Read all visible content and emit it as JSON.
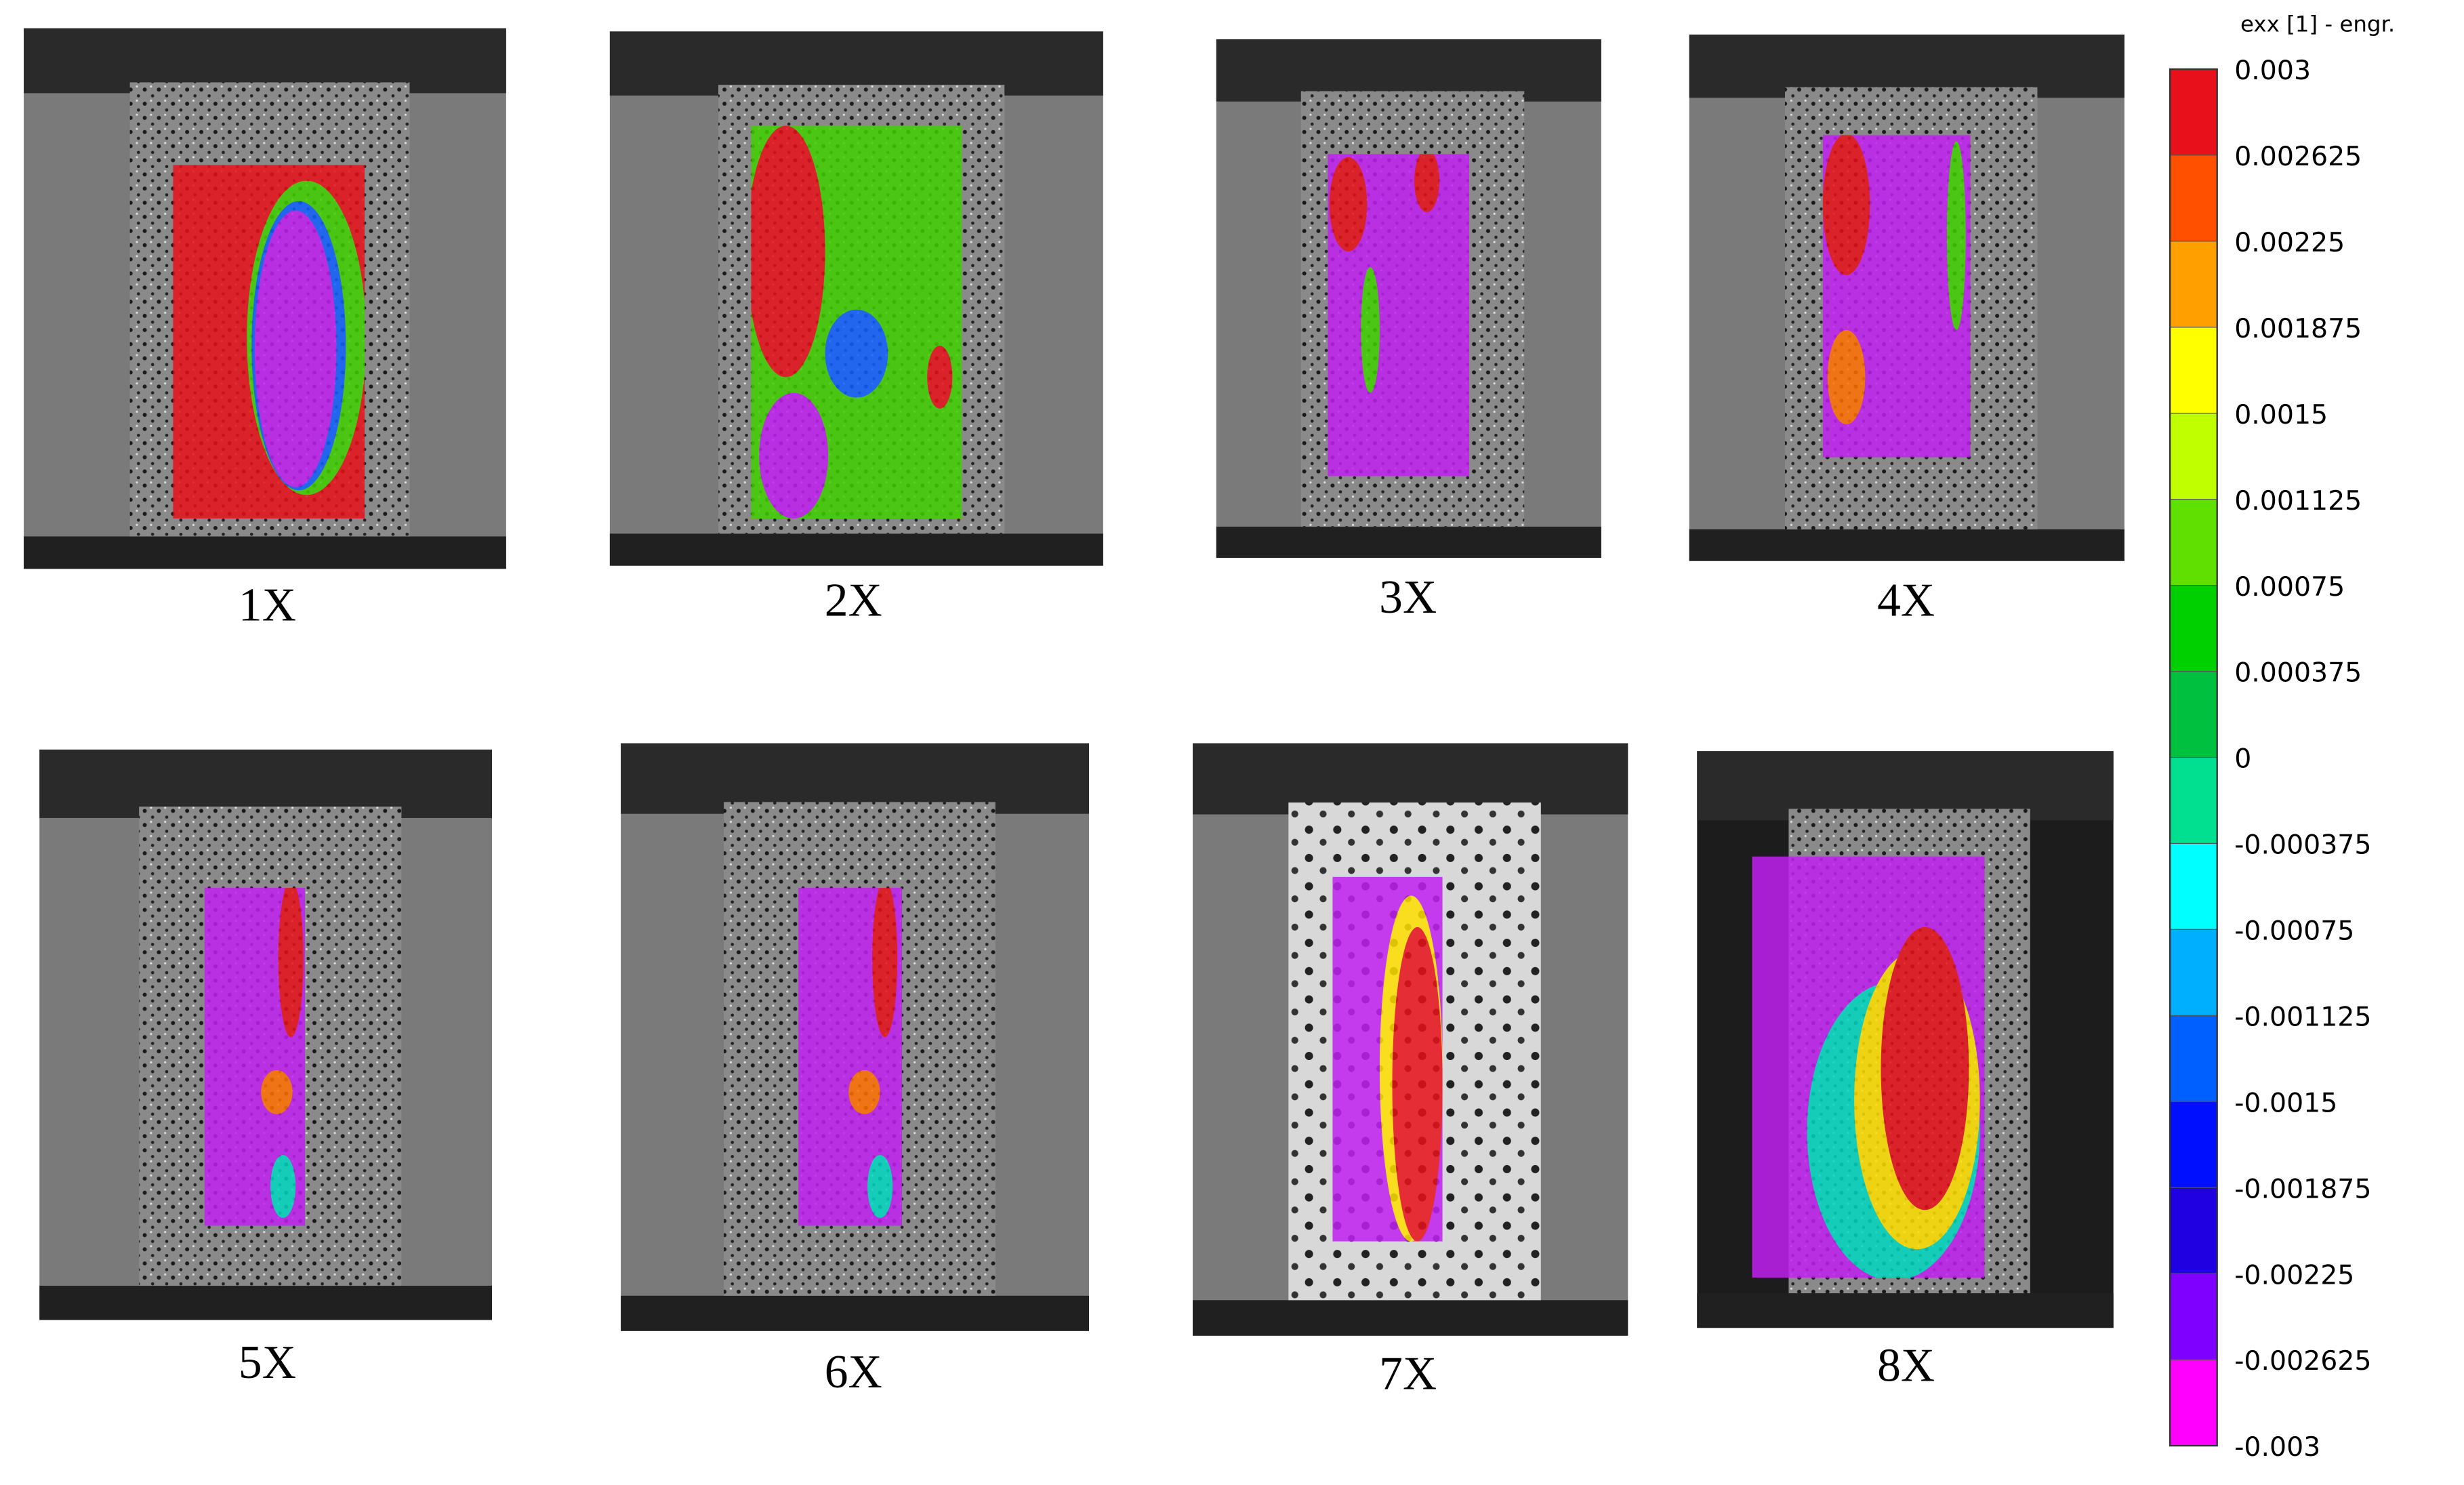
{
  "panels": [
    {
      "label": "1X"
    },
    {
      "label": "2X"
    },
    {
      "label": "3X"
    },
    {
      "label": "4X"
    },
    {
      "label": "5X"
    },
    {
      "label": "6X"
    },
    {
      "label": "7X"
    },
    {
      "label": "8X"
    }
  ],
  "colorbar": {
    "title": "exx [1] - engr.",
    "labels": [
      "0.003",
      "0.002625",
      "0.00225",
      "0.001875",
      "0.0015",
      "0.001125",
      "0.00075",
      "0.000375",
      "0",
      "-0.000375",
      "-0.00075",
      "-0.001125",
      "-0.0015",
      "-0.001875",
      "-0.00225",
      "-0.002625",
      "-0.003"
    ]
  }
}
